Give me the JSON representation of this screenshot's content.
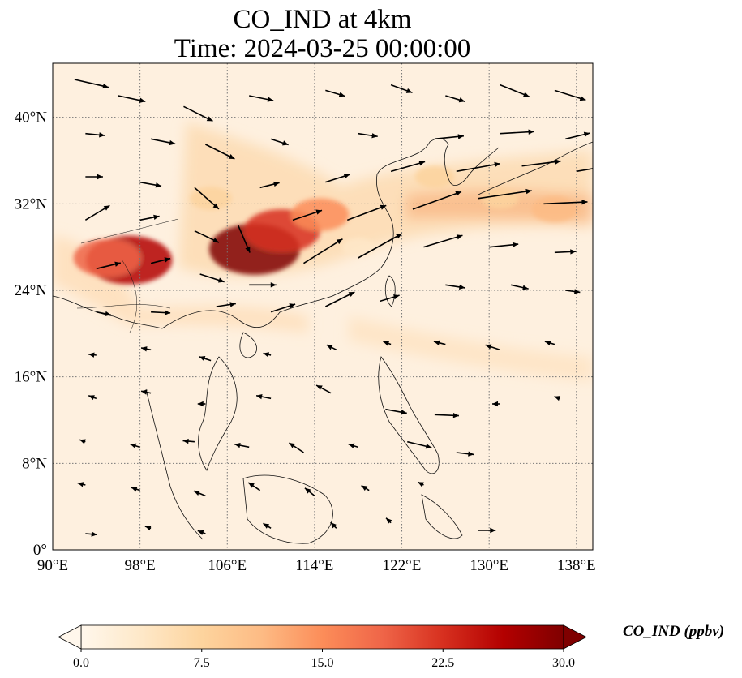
{
  "title_line1": "CO_IND at 4km",
  "title_line2": "Time: 2024-03-25 00:00:00",
  "chart_data": {
    "type": "heatmap",
    "variable": "CO_IND",
    "level": "4km",
    "time": "2024-03-25 00:00:00",
    "colormap": "OrRd",
    "colors": [
      "#fff7ec",
      "#fee8c8",
      "#fdd49e",
      "#fdbb84",
      "#fc8d59",
      "#ef6548",
      "#d7301f",
      "#b30000",
      "#7f0000"
    ],
    "clim": [
      0.0,
      30.0
    ],
    "colorbar_extend": "both",
    "colorbar_label": "CO_IND (ppbv)",
    "colorbar_ticks": [
      "0.0",
      "7.5",
      "15.0",
      "22.5",
      "30.0"
    ],
    "colorbar_tick_values": [
      0.0,
      7.5,
      15.0,
      22.5,
      30.0
    ],
    "lon_range": [
      90,
      139.5
    ],
    "lat_range": [
      0,
      45
    ],
    "lon_ticks": [
      90,
      98,
      106,
      114,
      122,
      130,
      138
    ],
    "lat_ticks": [
      0,
      8,
      16,
      24,
      32,
      40
    ],
    "lon_tick_labels": [
      "90°E",
      "98°E",
      "106°E",
      "114°E",
      "122°E",
      "130°E",
      "138°E"
    ],
    "lat_tick_labels": [
      "0°",
      "8°N",
      "16°N",
      "24°N",
      "32°N",
      "40°N"
    ],
    "grid": true,
    "plumes": [
      {
        "lon": 108.5,
        "lat": 27.8,
        "value": 30
      },
      {
        "lon": 111.0,
        "lat": 29.5,
        "value": 24
      },
      {
        "lon": 114.5,
        "lat": 31.0,
        "value": 16
      },
      {
        "lon": 97.0,
        "lat": 26.8,
        "value": 28
      },
      {
        "lon": 95.0,
        "lat": 27.0,
        "value": 20
      },
      {
        "lon": 104.5,
        "lat": 32.5,
        "value": 9
      },
      {
        "lon": 125.0,
        "lat": 34.5,
        "value": 8
      },
      {
        "lon": 136.0,
        "lat": 31.5,
        "value": 11
      },
      {
        "lon": 131.0,
        "lat": 32.5,
        "value": 7
      },
      {
        "lon": 118.0,
        "lat": 28.0,
        "value": 5
      }
    ],
    "wind_vectors": [
      {
        "lon": 92.0,
        "lat": 43.5,
        "u": 3.5,
        "v": -0.8
      },
      {
        "lon": 96.0,
        "lat": 42.0,
        "u": 2.8,
        "v": -0.6
      },
      {
        "lon": 102.0,
        "lat": 41.0,
        "u": 3.0,
        "v": -1.5
      },
      {
        "lon": 108.0,
        "lat": 42.0,
        "u": 2.5,
        "v": -0.5
      },
      {
        "lon": 115.0,
        "lat": 42.5,
        "u": 2.0,
        "v": -0.6
      },
      {
        "lon": 121.0,
        "lat": 43.0,
        "u": 2.2,
        "v": -0.8
      },
      {
        "lon": 126.0,
        "lat": 42.0,
        "u": 2.0,
        "v": -0.6
      },
      {
        "lon": 131.0,
        "lat": 43.0,
        "u": 3.0,
        "v": -1.2
      },
      {
        "lon": 136.0,
        "lat": 42.5,
        "u": 3.2,
        "v": -1.0
      },
      {
        "lon": 93.0,
        "lat": 38.5,
        "u": 2.0,
        "v": -0.2
      },
      {
        "lon": 99.0,
        "lat": 38.0,
        "u": 2.5,
        "v": -0.5
      },
      {
        "lon": 104.0,
        "lat": 37.5,
        "u": 3.0,
        "v": -1.5
      },
      {
        "lon": 110.0,
        "lat": 38.0,
        "u": 1.8,
        "v": -0.6
      },
      {
        "lon": 118.0,
        "lat": 38.5,
        "u": 2.0,
        "v": -0.3
      },
      {
        "lon": 125.0,
        "lat": 38.0,
        "u": 3.0,
        "v": 0.3
      },
      {
        "lon": 131.0,
        "lat": 38.5,
        "u": 3.5,
        "v": 0.2
      },
      {
        "lon": 137.0,
        "lat": 38.0,
        "u": 2.5,
        "v": 0.6
      },
      {
        "lon": 93.0,
        "lat": 34.5,
        "u": 1.8,
        "v": 0.0
      },
      {
        "lon": 98.0,
        "lat": 34.0,
        "u": 2.2,
        "v": -0.4
      },
      {
        "lon": 103.0,
        "lat": 33.5,
        "u": 2.5,
        "v": -2.2
      },
      {
        "lon": 109.0,
        "lat": 33.5,
        "u": 2.0,
        "v": 0.5
      },
      {
        "lon": 115.0,
        "lat": 34.0,
        "u": 2.5,
        "v": 0.8
      },
      {
        "lon": 121.0,
        "lat": 35.0,
        "u": 3.5,
        "v": 1.0
      },
      {
        "lon": 127.0,
        "lat": 35.0,
        "u": 4.5,
        "v": 0.8
      },
      {
        "lon": 133.0,
        "lat": 35.5,
        "u": 4.0,
        "v": 0.5
      },
      {
        "lon": 138.0,
        "lat": 35.0,
        "u": 3.0,
        "v": 0.5
      },
      {
        "lon": 93.0,
        "lat": 30.5,
        "u": 2.5,
        "v": 1.5
      },
      {
        "lon": 98.0,
        "lat": 30.5,
        "u": 2.0,
        "v": 0.4
      },
      {
        "lon": 103.0,
        "lat": 29.5,
        "u": 2.5,
        "v": -1.2
      },
      {
        "lon": 107.0,
        "lat": 30.0,
        "u": 1.2,
        "v": -2.8
      },
      {
        "lon": 112.0,
        "lat": 30.5,
        "u": 3.0,
        "v": 1.0
      },
      {
        "lon": 117.0,
        "lat": 30.5,
        "u": 4.0,
        "v": 1.5
      },
      {
        "lon": 123.0,
        "lat": 31.5,
        "u": 5.0,
        "v": 1.8
      },
      {
        "lon": 129.0,
        "lat": 32.5,
        "u": 5.5,
        "v": 0.8
      },
      {
        "lon": 135.0,
        "lat": 32.0,
        "u": 4.5,
        "v": 0.2
      },
      {
        "lon": 94.0,
        "lat": 26.0,
        "u": 2.5,
        "v": 0.6
      },
      {
        "lon": 99.0,
        "lat": 26.5,
        "u": 2.0,
        "v": 0.5
      },
      {
        "lon": 103.5,
        "lat": 25.5,
        "u": 2.5,
        "v": -0.8
      },
      {
        "lon": 108.0,
        "lat": 24.5,
        "u": 2.8,
        "v": 0.0
      },
      {
        "lon": 113.0,
        "lat": 26.5,
        "u": 4.0,
        "v": 2.5
      },
      {
        "lon": 118.0,
        "lat": 27.0,
        "u": 4.5,
        "v": 2.5
      },
      {
        "lon": 124.0,
        "lat": 28.0,
        "u": 4.0,
        "v": 1.2
      },
      {
        "lon": 130.0,
        "lat": 28.0,
        "u": 3.0,
        "v": 0.3
      },
      {
        "lon": 136.0,
        "lat": 27.5,
        "u": 2.2,
        "v": 0.1
      },
      {
        "lon": 94.0,
        "lat": 22.0,
        "u": 1.5,
        "v": -0.3
      },
      {
        "lon": 99.0,
        "lat": 22.0,
        "u": 2.0,
        "v": -0.1
      },
      {
        "lon": 105.0,
        "lat": 22.5,
        "u": 2.0,
        "v": 0.3
      },
      {
        "lon": 110.0,
        "lat": 22.0,
        "u": 2.5,
        "v": 0.8
      },
      {
        "lon": 115.0,
        "lat": 22.5,
        "u": 3.0,
        "v": 1.5
      },
      {
        "lon": 120.0,
        "lat": 23.0,
        "u": 2.0,
        "v": 0.6
      },
      {
        "lon": 126.0,
        "lat": 24.5,
        "u": 2.0,
        "v": -0.3
      },
      {
        "lon": 132.0,
        "lat": 24.5,
        "u": 1.8,
        "v": -0.4
      },
      {
        "lon": 137.0,
        "lat": 24.0,
        "u": 1.5,
        "v": -0.2
      },
      {
        "lon": 94.0,
        "lat": 18.0,
        "u": -0.8,
        "v": 0.1
      },
      {
        "lon": 99.0,
        "lat": 18.5,
        "u": -1.0,
        "v": 0.2
      },
      {
        "lon": 104.5,
        "lat": 17.5,
        "u": -1.2,
        "v": 0.4
      },
      {
        "lon": 110.0,
        "lat": 18.0,
        "u": -0.8,
        "v": 0.2
      },
      {
        "lon": 116.0,
        "lat": 18.5,
        "u": -1.0,
        "v": 0.5
      },
      {
        "lon": 121.0,
        "lat": 19.0,
        "u": -0.8,
        "v": 0.3
      },
      {
        "lon": 126.0,
        "lat": 19.0,
        "u": -1.2,
        "v": 0.3
      },
      {
        "lon": 131.0,
        "lat": 18.5,
        "u": -1.5,
        "v": 0.5
      },
      {
        "lon": 136.0,
        "lat": 19.0,
        "u": -1.0,
        "v": 0.3
      },
      {
        "lon": 94.0,
        "lat": 14.0,
        "u": -0.8,
        "v": 0.3
      },
      {
        "lon": 99.0,
        "lat": 14.5,
        "u": -1.0,
        "v": 0.2
      },
      {
        "lon": 104.0,
        "lat": 13.5,
        "u": -0.8,
        "v": 0.0
      },
      {
        "lon": 110.0,
        "lat": 14.0,
        "u": -1.5,
        "v": 0.3
      },
      {
        "lon": 115.5,
        "lat": 14.5,
        "u": -1.5,
        "v": 0.8
      },
      {
        "lon": 120.5,
        "lat": 13.0,
        "u": 2.2,
        "v": -0.4
      },
      {
        "lon": 125.0,
        "lat": 12.5,
        "u": 2.5,
        "v": -0.1
      },
      {
        "lon": 131.0,
        "lat": 13.5,
        "u": -0.8,
        "v": 0.0
      },
      {
        "lon": 136.5,
        "lat": 14.0,
        "u": -0.6,
        "v": 0.2
      },
      {
        "lon": 93.0,
        "lat": 10.0,
        "u": -0.6,
        "v": 0.2
      },
      {
        "lon": 98.0,
        "lat": 9.5,
        "u": -1.0,
        "v": 0.3
      },
      {
        "lon": 103.0,
        "lat": 10.0,
        "u": -1.2,
        "v": 0.1
      },
      {
        "lon": 108.0,
        "lat": 9.5,
        "u": -1.5,
        "v": 0.3
      },
      {
        "lon": 113.0,
        "lat": 9.0,
        "u": -1.5,
        "v": 1.0
      },
      {
        "lon": 118.0,
        "lat": 9.5,
        "u": -1.0,
        "v": 0.3
      },
      {
        "lon": 122.5,
        "lat": 10.0,
        "u": 2.5,
        "v": -0.6
      },
      {
        "lon": 127.0,
        "lat": 9.0,
        "u": 1.8,
        "v": -0.2
      },
      {
        "lon": 93.0,
        "lat": 6.0,
        "u": -0.8,
        "v": 0.2
      },
      {
        "lon": 98.0,
        "lat": 5.5,
        "u": -0.9,
        "v": 0.3
      },
      {
        "lon": 104.0,
        "lat": 5.0,
        "u": -1.2,
        "v": 0.5
      },
      {
        "lon": 109.0,
        "lat": 5.5,
        "u": -1.2,
        "v": 0.8
      },
      {
        "lon": 114.0,
        "lat": 5.0,
        "u": -1.0,
        "v": 0.8
      },
      {
        "lon": 119.0,
        "lat": 5.5,
        "u": -0.8,
        "v": 0.5
      },
      {
        "lon": 124.0,
        "lat": 6.0,
        "u": -0.6,
        "v": 0.3
      },
      {
        "lon": 93.0,
        "lat": 1.5,
        "u": 1.2,
        "v": -0.1
      },
      {
        "lon": 99.0,
        "lat": 2.0,
        "u": -0.6,
        "v": 0.2
      },
      {
        "lon": 104.0,
        "lat": 1.5,
        "u": -0.8,
        "v": 0.3
      },
      {
        "lon": 110.0,
        "lat": 2.0,
        "u": -0.8,
        "v": 0.5
      },
      {
        "lon": 116.0,
        "lat": 2.0,
        "u": -0.6,
        "v": 0.6
      },
      {
        "lon": 121.0,
        "lat": 2.5,
        "u": -0.5,
        "v": 0.5
      },
      {
        "lon": 129.0,
        "lat": 1.8,
        "u": 1.8,
        "v": 0.0
      }
    ]
  }
}
